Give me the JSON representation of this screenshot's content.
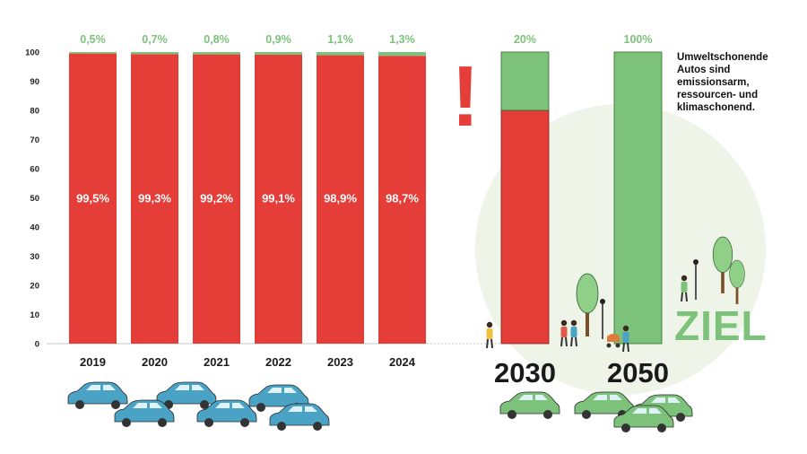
{
  "chart_data": {
    "type": "bar",
    "stacked": true,
    "categories": [
      "2019",
      "2020",
      "2021",
      "2022",
      "2023",
      "2024",
      "2030",
      "2050"
    ],
    "series": [
      {
        "values": [
          99.5,
          99.3,
          99.2,
          99.1,
          98.9,
          98.7,
          80,
          0
        ],
        "color": "#e53d38",
        "labels": [
          "99,5%",
          "99,3%",
          "99,2%",
          "99,1%",
          "98,9%",
          "98,7%",
          "",
          ""
        ]
      },
      {
        "values": [
          0.5,
          0.7,
          0.8,
          0.9,
          1.1,
          1.3,
          20,
          100
        ],
        "color": "#7cc27a",
        "labels": [
          "0,5%",
          "0,7%",
          "0,8%",
          "0,9%",
          "1,1%",
          "1,3%",
          "20%",
          "100%"
        ]
      }
    ],
    "ylim": [
      0,
      100
    ],
    "yticks": [
      0,
      10,
      20,
      30,
      40,
      50,
      60,
      70,
      80,
      90,
      100
    ],
    "grid": false,
    "title": "",
    "xlabel": "",
    "ylabel": ""
  },
  "annotations": {
    "side_note": "Umweltschonende Autos sind emissionsarm, ressourcen- und klimaschonend.",
    "exclamation": "!",
    "goal_label": "ZIEL"
  },
  "colors": {
    "red": "#e53d38",
    "green": "#7cc27a",
    "car_blue": "#4aa3c4",
    "car_green": "#7cc27a",
    "circle_bg": "#eef5e8"
  }
}
